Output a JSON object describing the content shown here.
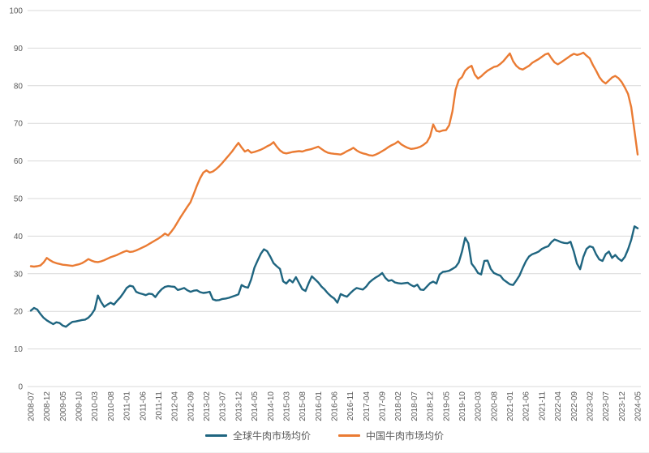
{
  "chart_data": {
    "type": "line",
    "x_interval": "monthly",
    "x_range": [
      "2008-07",
      "2024-05"
    ],
    "x_tick_labels": [
      "2008-07",
      "2008-12",
      "2009-05",
      "2009-10",
      "2010-03",
      "2010-08",
      "2011-01",
      "2011-06",
      "2011-11",
      "2012-04",
      "2012-09",
      "2013-02",
      "2013-07",
      "2013-12",
      "2014-05",
      "2014-10",
      "2015-03",
      "2015-08",
      "2016-01",
      "2016-06",
      "2016-11",
      "2017-04",
      "2017-09",
      "2018-02",
      "2018-07",
      "2018-12",
      "2019-05",
      "2019-10",
      "2020-03",
      "2020-08",
      "2021-01",
      "2021-06",
      "2021-11",
      "2022-04",
      "2022-09",
      "2023-02",
      "2023-07",
      "2023-12",
      "2024-05"
    ],
    "x_tick_step_months": 5,
    "y_ticks": [
      0,
      10,
      20,
      30,
      40,
      50,
      60,
      70,
      80,
      90,
      100
    ],
    "ylim": [
      0,
      100
    ],
    "grid": "horizontal",
    "legend_position": "bottom-center",
    "title": "",
    "xlabel": "",
    "ylabel": "",
    "colors": {
      "gridline": "#d9d9d9",
      "tick_text": "#595959"
    },
    "series": [
      {
        "name": "全球牛肉市场均价",
        "color": "#1f6580",
        "values": [
          20.2,
          20.9,
          20.5,
          19.3,
          18.3,
          17.6,
          17.1,
          16.6,
          17.1,
          16.9,
          16.2,
          15.9,
          16.6,
          17.2,
          17.3,
          17.5,
          17.7,
          17.8,
          18.3,
          19.2,
          20.5,
          24.2,
          22.5,
          21.2,
          21.8,
          22.3,
          21.8,
          22.8,
          23.7,
          24.9,
          26.2,
          26.8,
          26.6,
          25.2,
          24.8,
          24.6,
          24.3,
          24.7,
          24.6,
          23.8,
          25.0,
          25.9,
          26.5,
          26.7,
          26.6,
          26.5,
          25.7,
          25.9,
          26.2,
          25.6,
          25.2,
          25.5,
          25.6,
          25.1,
          24.9,
          25.0,
          25.2,
          23.2,
          22.9,
          23.0,
          23.3,
          23.4,
          23.6,
          23.9,
          24.2,
          24.5,
          27.0,
          26.5,
          26.3,
          28.5,
          31.6,
          33.5,
          35.3,
          36.5,
          36.0,
          34.5,
          32.8,
          32.0,
          31.3,
          28.0,
          27.4,
          28.4,
          27.7,
          29.1,
          27.5,
          25.9,
          25.4,
          27.5,
          29.3,
          28.5,
          27.7,
          26.6,
          25.8,
          24.8,
          24.0,
          23.4,
          22.3,
          24.6,
          24.2,
          23.9,
          24.8,
          25.6,
          26.2,
          26.0,
          25.8,
          26.6,
          27.7,
          28.4,
          29.0,
          29.5,
          30.2,
          28.9,
          28.1,
          28.3,
          27.7,
          27.5,
          27.4,
          27.5,
          27.6,
          27.0,
          26.6,
          27.1,
          25.8,
          25.7,
          26.6,
          27.5,
          27.9,
          27.4,
          29.8,
          30.5,
          30.6,
          30.8,
          31.3,
          31.8,
          33.0,
          35.9,
          39.6,
          38.1,
          32.7,
          31.6,
          30.2,
          29.8,
          33.4,
          33.5,
          31.3,
          30.2,
          29.8,
          29.5,
          28.4,
          27.8,
          27.2,
          27.0,
          28.2,
          29.5,
          31.5,
          33.3,
          34.6,
          35.2,
          35.5,
          35.9,
          36.6,
          37.0,
          37.3,
          38.4,
          39.1,
          38.8,
          38.4,
          38.2,
          38.1,
          38.5,
          35.9,
          32.7,
          31.2,
          34.5,
          36.6,
          37.3,
          37.0,
          35.2,
          33.8,
          33.4,
          35.2,
          35.9,
          34.2,
          35.0,
          34.0,
          33.4,
          34.5,
          36.5,
          39.0,
          42.6,
          42.1
        ]
      },
      {
        "name": "中国牛肉市场均价",
        "color": "#ea7b33",
        "values": [
          32.0,
          31.9,
          32.0,
          32.2,
          33.0,
          34.2,
          33.6,
          33.1,
          32.8,
          32.6,
          32.4,
          32.3,
          32.2,
          32.1,
          32.3,
          32.5,
          32.8,
          33.3,
          33.9,
          33.5,
          33.2,
          33.1,
          33.3,
          33.6,
          34.0,
          34.4,
          34.7,
          35.0,
          35.4,
          35.8,
          36.1,
          35.8,
          35.9,
          36.2,
          36.6,
          37.0,
          37.4,
          37.9,
          38.4,
          38.9,
          39.4,
          40.0,
          40.7,
          40.2,
          41.2,
          42.4,
          43.8,
          45.2,
          46.5,
          47.8,
          49.0,
          51.2,
          53.4,
          55.4,
          56.9,
          57.5,
          56.9,
          57.2,
          57.8,
          58.6,
          59.5,
          60.5,
          61.5,
          62.5,
          63.7,
          64.8,
          63.6,
          62.5,
          62.9,
          62.2,
          62.4,
          62.7,
          63.0,
          63.4,
          63.9,
          64.3,
          65.0,
          63.8,
          62.8,
          62.2,
          62.0,
          62.2,
          62.4,
          62.5,
          62.6,
          62.5,
          62.8,
          63.0,
          63.2,
          63.5,
          63.8,
          63.2,
          62.6,
          62.2,
          62.0,
          61.9,
          61.8,
          61.7,
          62.1,
          62.6,
          63.0,
          63.5,
          62.8,
          62.3,
          62.0,
          61.8,
          61.5,
          61.4,
          61.7,
          62.1,
          62.6,
          63.1,
          63.7,
          64.2,
          64.6,
          65.2,
          64.4,
          63.9,
          63.5,
          63.2,
          63.3,
          63.5,
          63.8,
          64.3,
          65.0,
          66.5,
          69.7,
          68.0,
          67.8,
          68.1,
          68.2,
          69.5,
          73.2,
          78.9,
          81.5,
          82.3,
          84.0,
          84.8,
          85.3,
          83.0,
          81.9,
          82.5,
          83.3,
          84.0,
          84.5,
          85.0,
          85.2,
          85.8,
          86.6,
          87.6,
          88.6,
          86.5,
          85.3,
          84.6,
          84.3,
          84.8,
          85.3,
          86.1,
          86.6,
          87.1,
          87.7,
          88.3,
          88.6,
          87.3,
          86.2,
          85.7,
          86.2,
          86.8,
          87.4,
          88.0,
          88.5,
          88.2,
          88.4,
          88.8,
          88.0,
          87.3,
          85.5,
          84.0,
          82.3,
          81.2,
          80.6,
          81.4,
          82.2,
          82.6,
          82.0,
          81.0,
          79.5,
          77.8,
          74.3,
          68.0,
          61.7
        ]
      }
    ]
  },
  "legend": {
    "items": [
      {
        "label": "全球牛肉市场均价"
      },
      {
        "label": "中国牛肉市场均价"
      }
    ]
  }
}
